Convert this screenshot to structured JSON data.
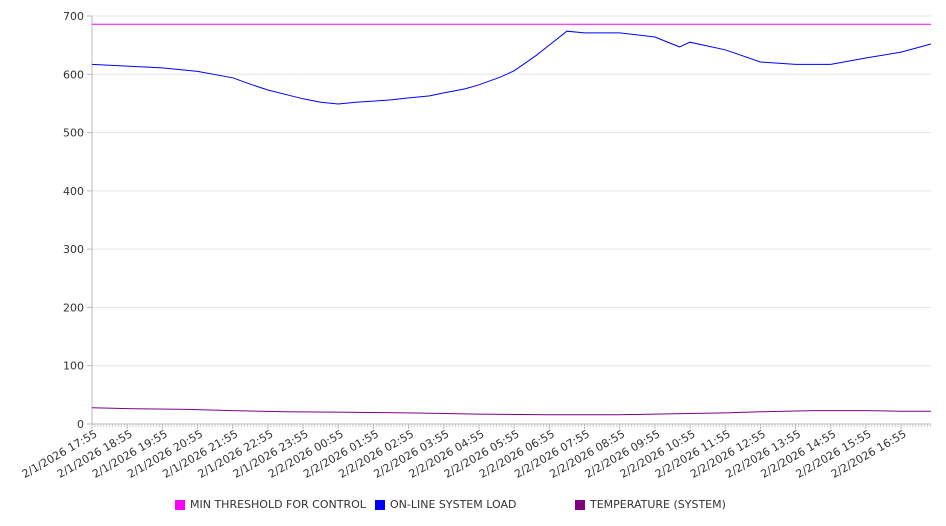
{
  "chart_data": {
    "type": "line",
    "title": "",
    "xlabel": "",
    "ylabel": "",
    "ylim": [
      0,
      700
    ],
    "yticks": [
      0,
      100,
      200,
      300,
      400,
      500,
      600,
      700
    ],
    "grid": true,
    "x_unit": "hours since 2/1/2026 17:55",
    "xlim": [
      0,
      23.85
    ],
    "xtick_labels": [
      "2/1/2026 17:55",
      "2/1/2026 18:55",
      "2/1/2026 19:55",
      "2/1/2026 20:55",
      "2/1/2026 21:55",
      "2/1/2026 22:55",
      "2/1/2026 23:55",
      "2/2/2026 00:55",
      "2/2/2026 01:55",
      "2/2/2026 02:55",
      "2/2/2026 03:55",
      "2/2/2026 04:55",
      "2/2/2026 05:55",
      "2/2/2026 06:55",
      "2/2/2026 07:55",
      "2/2/2026 08:55",
      "2/2/2026 09:55",
      "2/2/2026 10:55",
      "2/2/2026 11:55",
      "2/2/2026 12:55",
      "2/2/2026 13:55",
      "2/2/2026 14:55",
      "2/2/2026 15:55",
      "2/2/2026 16:55"
    ],
    "legend_position": "bottom",
    "series": [
      {
        "name": "MIN THRESHOLD FOR CONTROL",
        "color": "#ff00ff",
        "x": [
          0,
          23.85
        ],
        "values": [
          686,
          686
        ]
      },
      {
        "name": "ON-LINE SYSTEM LOAD",
        "color": "#0000ff",
        "x": [
          0,
          1,
          2,
          3,
          4,
          4.5,
          5,
          5.6,
          6,
          6.5,
          7,
          7.5,
          8,
          8.5,
          8.9,
          9.6,
          10,
          10.6,
          11,
          11.6,
          12,
          12.6,
          13,
          13.5,
          14,
          15,
          16,
          16.7,
          17,
          18,
          19,
          20,
          21,
          22,
          23,
          23.85
        ],
        "values": [
          617,
          614,
          611,
          605,
          594,
          583,
          573,
          564,
          558,
          552,
          549,
          552,
          554,
          556,
          559,
          563,
          568,
          575,
          582,
          595,
          606,
          631,
          650,
          674,
          671,
          671,
          664,
          647,
          655,
          642,
          621,
          617,
          617,
          628,
          638,
          652
        ]
      },
      {
        "name": "TEMPERATURE (SYSTEM)",
        "color": "#800080",
        "x": [
          0,
          1.2,
          2.7,
          4,
          5.5,
          7.3,
          9,
          11,
          13,
          15,
          16,
          18,
          19,
          20.5,
          22,
          23,
          23.85
        ],
        "values": [
          28,
          26,
          25,
          23,
          21,
          20,
          19,
          17,
          16,
          16,
          17,
          19,
          21,
          23,
          23,
          22,
          22
        ]
      }
    ]
  }
}
